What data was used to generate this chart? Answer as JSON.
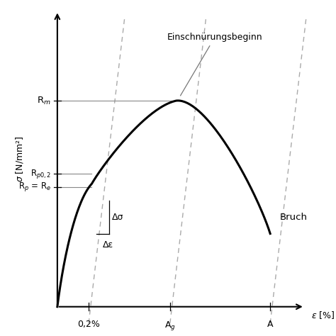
{
  "curve_color": "#000000",
  "dashed_color": "#aaaaaa",
  "ref_line_color": "#888888",
  "background_color": "#ffffff",
  "Rm_label": "R$_m$",
  "Rp02_label": "R$_{p0,2}$",
  "Rpe_label": "R$_p$ = R$_e$",
  "x02_label": "0,2%",
  "xAg_label": "A$_g$",
  "xA_label": "A",
  "einschnuer_label": "Einschnürungsbeginn",
  "bruch_label": "Bruch",
  "dsigma_label": "Δσ",
  "depsilon_label": "Δε",
  "ylabel_rotated": "σ [N/mm²]",
  "xlabel": "ε [%]"
}
